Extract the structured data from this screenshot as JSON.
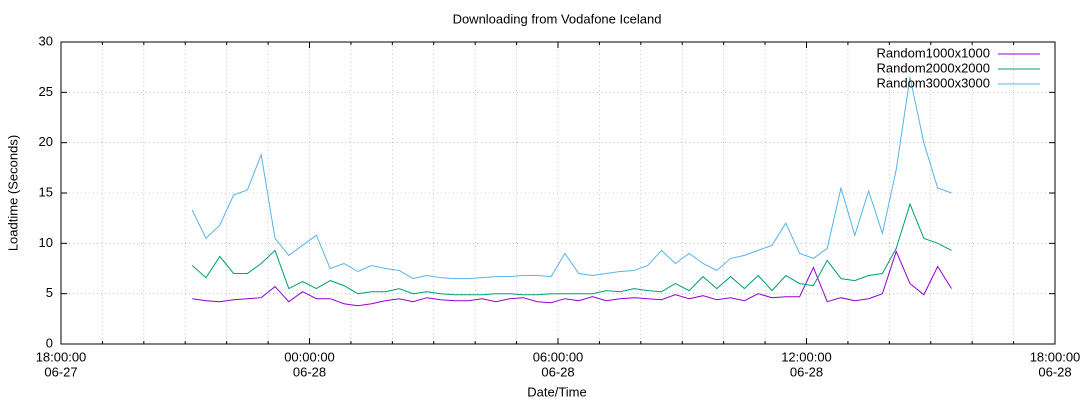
{
  "chart_data": {
    "type": "line",
    "title": "Downloading from Vodafone Iceland",
    "xlabel": "Date/Time",
    "ylabel": "Loadtime (Seconds)",
    "xlim": [
      "06-27 18:00:00",
      "06-28 18:00:00"
    ],
    "xticks": [
      {
        "value": "06-27 18:00:00",
        "label": [
          "18:00:00",
          "06-27"
        ]
      },
      {
        "value": "06-28 00:00:00",
        "label": [
          "00:00:00",
          "06-28"
        ]
      },
      {
        "value": "06-28 06:00:00",
        "label": [
          "06:00:00",
          "06-28"
        ]
      },
      {
        "value": "06-28 12:00:00",
        "label": [
          "12:00:00",
          "06-28"
        ]
      },
      {
        "value": "06-28 18:00:00",
        "label": [
          "18:00:00",
          "06-28"
        ]
      }
    ],
    "xminorticks": [
      "06-27 19:00:00",
      "06-27 20:00:00",
      "06-27 21:00:00",
      "06-27 22:00:00",
      "06-27 23:00:00",
      "06-28 01:00:00",
      "06-28 02:00:00",
      "06-28 03:00:00",
      "06-28 04:00:00",
      "06-28 05:00:00",
      "06-28 07:00:00",
      "06-28 08:00:00",
      "06-28 09:00:00",
      "06-28 10:00:00",
      "06-28 11:00:00",
      "06-28 13:00:00",
      "06-28 14:00:00",
      "06-28 15:00:00",
      "06-28 16:00:00",
      "06-28 17:00:00"
    ],
    "ylim": [
      0,
      30
    ],
    "yticks": [
      0,
      5,
      10,
      15,
      20,
      25,
      30
    ],
    "grid": true,
    "legend": "top-right",
    "x": [
      "06-27 21:10:00",
      "06-27 21:30:00",
      "06-27 21:50:00",
      "06-27 22:10:00",
      "06-27 22:30:00",
      "06-27 22:50:00",
      "06-27 23:10:00",
      "06-27 23:30:00",
      "06-27 23:50:00",
      "06-28 00:10:00",
      "06-28 00:30:00",
      "06-28 00:50:00",
      "06-28 01:10:00",
      "06-28 01:30:00",
      "06-28 01:50:00",
      "06-28 02:10:00",
      "06-28 02:30:00",
      "06-28 02:50:00",
      "06-28 03:10:00",
      "06-28 03:30:00",
      "06-28 03:50:00",
      "06-28 04:10:00",
      "06-28 04:30:00",
      "06-28 04:50:00",
      "06-28 05:10:00",
      "06-28 05:30:00",
      "06-28 05:50:00",
      "06-28 06:10:00",
      "06-28 06:30:00",
      "06-28 06:50:00",
      "06-28 07:10:00",
      "06-28 07:30:00",
      "06-28 07:50:00",
      "06-28 08:10:00",
      "06-28 08:30:00",
      "06-28 08:50:00",
      "06-28 09:10:00",
      "06-28 09:30:00",
      "06-28 09:50:00",
      "06-28 10:10:00",
      "06-28 10:30:00",
      "06-28 10:50:00",
      "06-28 11:10:00",
      "06-28 11:30:00",
      "06-28 11:50:00",
      "06-28 12:10:00",
      "06-28 12:30:00",
      "06-28 12:50:00",
      "06-28 13:10:00",
      "06-28 13:30:00",
      "06-28 13:50:00",
      "06-28 14:10:00",
      "06-28 14:30:00",
      "06-28 14:50:00",
      "06-28 15:10:00",
      "06-28 15:30:00"
    ],
    "series": [
      {
        "name": "Random1000x1000",
        "color": "#9400d3",
        "values": [
          4.5,
          4.3,
          4.2,
          4.4,
          4.5,
          4.6,
          5.7,
          4.2,
          5.2,
          4.5,
          4.5,
          4.0,
          3.8,
          4.0,
          4.3,
          4.5,
          4.2,
          4.6,
          4.4,
          4.3,
          4.3,
          4.5,
          4.2,
          4.5,
          4.6,
          4.2,
          4.1,
          4.5,
          4.3,
          4.7,
          4.3,
          4.5,
          4.6,
          4.5,
          4.4,
          4.9,
          4.5,
          4.8,
          4.4,
          4.6,
          4.3,
          5.0,
          4.6,
          4.7,
          4.7,
          7.6,
          4.2,
          4.6,
          4.3,
          4.5,
          5.0,
          9.2,
          6.0,
          4.9,
          7.7,
          5.5
        ]
      },
      {
        "name": "Random2000x2000",
        "color": "#009e73",
        "values": [
          7.8,
          6.6,
          8.7,
          7.0,
          7.0,
          8.0,
          9.3,
          5.5,
          6.2,
          5.5,
          6.3,
          5.8,
          5.0,
          5.2,
          5.2,
          5.5,
          5.0,
          5.2,
          5.0,
          4.9,
          4.9,
          4.9,
          5.0,
          5.0,
          4.9,
          4.9,
          5.0,
          5.0,
          5.0,
          5.0,
          5.3,
          5.2,
          5.5,
          5.3,
          5.2,
          6.0,
          5.3,
          6.7,
          5.5,
          6.7,
          5.5,
          6.8,
          5.3,
          6.8,
          6.0,
          5.8,
          8.3,
          6.5,
          6.3,
          6.8,
          7.0,
          9.5,
          13.9,
          10.5,
          10.0,
          9.3
        ]
      },
      {
        "name": "Random3000x3000",
        "color": "#56b4e9",
        "values": [
          13.3,
          10.5,
          11.8,
          14.8,
          15.3,
          18.8,
          10.5,
          8.8,
          9.8,
          10.8,
          7.5,
          8.0,
          7.2,
          7.8,
          7.5,
          7.3,
          6.5,
          6.8,
          6.6,
          6.5,
          6.5,
          6.6,
          6.7,
          6.7,
          6.8,
          6.8,
          6.7,
          9.0,
          7.0,
          6.8,
          7.0,
          7.2,
          7.3,
          7.8,
          9.3,
          8.0,
          9.0,
          8.0,
          7.3,
          8.5,
          8.8,
          9.3,
          9.8,
          12.0,
          9.0,
          8.5,
          9.5,
          15.5,
          10.8,
          15.2,
          11.0,
          17.3,
          26.5,
          20.0,
          15.5,
          15.0
        ]
      }
    ]
  }
}
